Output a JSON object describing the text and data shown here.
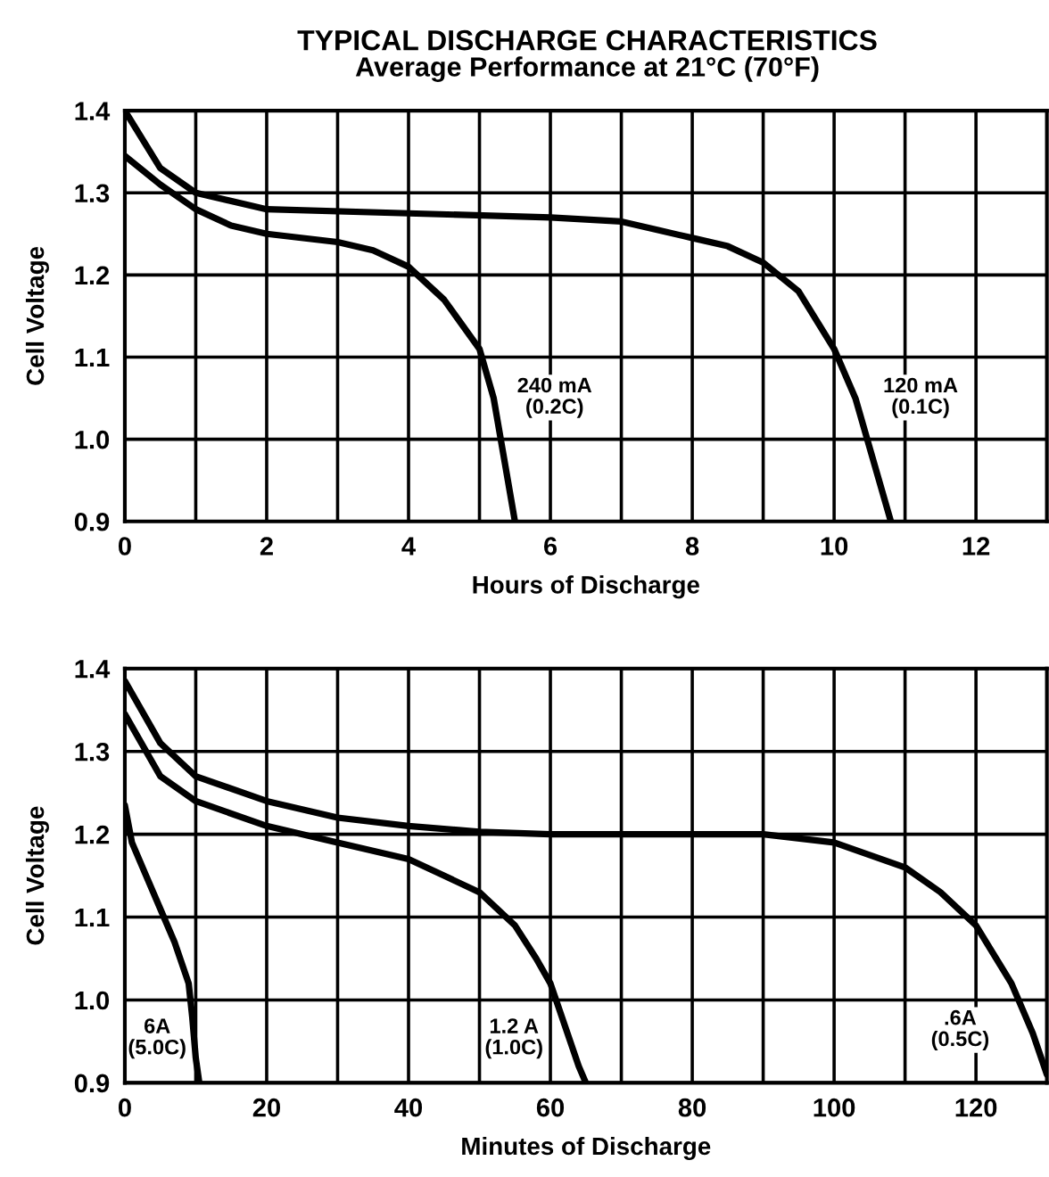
{
  "chart_data": [
    {
      "type": "line",
      "title": "TYPICAL DISCHARGE CHARACTERISTICS",
      "subtitle": "Average Performance at 21°C (70°F)",
      "xlabel": "Hours of Discharge",
      "ylabel": "Cell Voltage",
      "grid": true,
      "xlim": [
        0,
        13
      ],
      "ylim": [
        0.9,
        1.4
      ],
      "xticks": [
        0,
        {
          "value": 1,
          "label": null
        },
        2,
        {
          "value": 3,
          "label": null
        },
        4,
        {
          "value": 5,
          "label": null
        },
        6,
        {
          "value": 7,
          "label": null
        },
        8,
        {
          "value": 9,
          "label": null
        },
        10,
        {
          "value": 11,
          "label": null
        },
        12
      ],
      "yticks": [
        {
          "value": 0.9,
          "label": "0.9"
        },
        {
          "value": 1.0,
          "label": "1.0"
        },
        {
          "value": 1.1,
          "label": "1.1"
        },
        {
          "value": 1.2,
          "label": "1.2"
        },
        {
          "value": 1.3,
          "label": "1.3"
        },
        {
          "value": 1.4,
          "label": "1.4"
        }
      ],
      "series": [
        {
          "name": "240 mA\n(0.2C)",
          "color": "#000000",
          "x": [
            0,
            0.5,
            1,
            1.5,
            2,
            3,
            3.5,
            4,
            4.5,
            5,
            5.2,
            5.4,
            5.5
          ],
          "values": [
            1.345,
            1.31,
            1.28,
            1.26,
            1.25,
            1.24,
            1.23,
            1.21,
            1.17,
            1.11,
            1.05,
            0.95,
            0.9
          ]
        },
        {
          "name": "120 mA\n(0.1C)",
          "color": "#000000",
          "x": [
            0,
            0.5,
            1,
            2,
            4,
            6,
            7,
            8,
            8.5,
            9,
            9.5,
            10,
            10.3,
            10.6,
            10.8
          ],
          "values": [
            1.4,
            1.33,
            1.3,
            1.28,
            1.275,
            1.27,
            1.265,
            1.245,
            1.235,
            1.215,
            1.18,
            1.11,
            1.05,
            0.96,
            0.9
          ]
        }
      ],
      "legend": false
    },
    {
      "type": "line",
      "xlabel": "Minutes of Discharge",
      "ylabel": "Cell Voltage",
      "grid": true,
      "xlim": [
        0,
        130
      ],
      "ylim": [
        0.9,
        1.4
      ],
      "xticks": [
        0,
        {
          "value": 10,
          "label": null
        },
        20,
        {
          "value": 30,
          "label": null
        },
        40,
        {
          "value": 50,
          "label": null
        },
        60,
        {
          "value": 70,
          "label": null
        },
        80,
        {
          "value": 90,
          "label": null
        },
        100,
        {
          "value": 110,
          "label": null
        },
        120
      ],
      "yticks": [
        {
          "value": 0.9,
          "label": "0.9"
        },
        {
          "value": 1.0,
          "label": "1.0"
        },
        {
          "value": 1.1,
          "label": "1.1"
        },
        {
          "value": 1.2,
          "label": "1.2"
        },
        {
          "value": 1.3,
          "label": "1.3"
        },
        {
          "value": 1.4,
          "label": "1.4"
        }
      ],
      "series": [
        {
          "name": "6A\n(5.0C)",
          "color": "#000000",
          "x": [
            0,
            1,
            3,
            5,
            7,
            9,
            9.5,
            10,
            10.5
          ],
          "values": [
            1.235,
            1.19,
            1.15,
            1.11,
            1.07,
            1.02,
            0.98,
            0.93,
            0.9
          ]
        },
        {
          "name": "1.2 A\n(1.0C)",
          "color": "#000000",
          "x": [
            0,
            5,
            10,
            20,
            30,
            40,
            45,
            50,
            55,
            58,
            60,
            62,
            64,
            65
          ],
          "values": [
            1.345,
            1.27,
            1.24,
            1.21,
            1.19,
            1.17,
            1.15,
            1.13,
            1.09,
            1.05,
            1.02,
            0.97,
            0.92,
            0.9
          ]
        },
        {
          "name": ".6A\n(0.5C)",
          "color": "#000000",
          "x": [
            0,
            5,
            10,
            20,
            30,
            40,
            50,
            60,
            80,
            90,
            100,
            110,
            115,
            120,
            125,
            128,
            130
          ],
          "values": [
            1.385,
            1.31,
            1.27,
            1.24,
            1.22,
            1.21,
            1.203,
            1.2,
            1.2,
            1.2,
            1.19,
            1.16,
            1.13,
            1.09,
            1.02,
            0.96,
            0.91
          ]
        }
      ],
      "legend": false
    }
  ]
}
